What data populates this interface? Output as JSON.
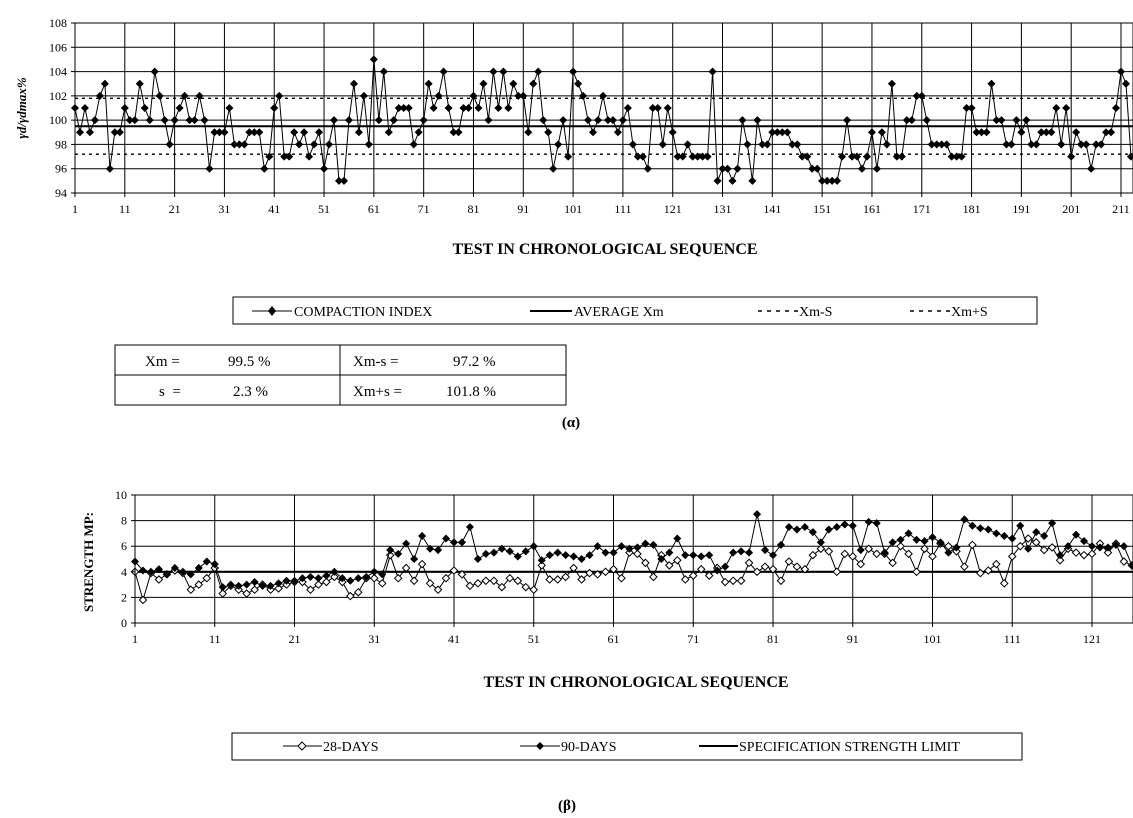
{
  "chart_data": [
    {
      "type": "line",
      "ylabel": "γd/γdmax%",
      "xlabel": "TEST IN CHRONOLOGICAL SEQUENCE",
      "ylim": [
        94,
        108
      ],
      "yticks": [
        94,
        96,
        98,
        100,
        102,
        104,
        106,
        108
      ],
      "xlim": [
        1,
        213
      ],
      "xticks": [
        1,
        11,
        21,
        31,
        41,
        51,
        61,
        71,
        81,
        91,
        101,
        111,
        121,
        131,
        141,
        151,
        161,
        171,
        181,
        191,
        201,
        211
      ],
      "grid": true,
      "legend": {
        "placement": "below",
        "entries": [
          "COMPACTION INDEX",
          "AVERAGE Xm",
          "Xm-S",
          "Xm+S"
        ]
      },
      "series": [
        {
          "name": "COMPACTION INDEX",
          "x_start": 1,
          "values": [
            101,
            99,
            101,
            99,
            100,
            102,
            103,
            96,
            99,
            99,
            101,
            100,
            100,
            103,
            101,
            100,
            104,
            102,
            100,
            98,
            100,
            101,
            102,
            100,
            100,
            102,
            100,
            96,
            99,
            99,
            99,
            101,
            98,
            98,
            98,
            99,
            99,
            99,
            96,
            97,
            101,
            102,
            97,
            97,
            99,
            98,
            99,
            97,
            98,
            99,
            96,
            98,
            100,
            95,
            95,
            100,
            103,
            99,
            102,
            98,
            105,
            100,
            104,
            99,
            100,
            101,
            101,
            101,
            98,
            99,
            100,
            103,
            101,
            102,
            104,
            101,
            99,
            99,
            101,
            101,
            102,
            101,
            103,
            100,
            104,
            101,
            104,
            101,
            103,
            102,
            102,
            99,
            103,
            104,
            100,
            99,
            96,
            98,
            100,
            97,
            104,
            103,
            102,
            100,
            99,
            100,
            102,
            100,
            100,
            99,
            100,
            101,
            98,
            97,
            97,
            96,
            101,
            101,
            98,
            101,
            99,
            97,
            97,
            98,
            97,
            97,
            97,
            97,
            104,
            95,
            96,
            96,
            95,
            96,
            100,
            98,
            95,
            100,
            98,
            98,
            99,
            99,
            99,
            99,
            98,
            98,
            97,
            97,
            96,
            96,
            95,
            95,
            95,
            95,
            97,
            100,
            97,
            97,
            96,
            97,
            99,
            96,
            99,
            98,
            103,
            97,
            97,
            100,
            100,
            102,
            102,
            100,
            98,
            98,
            98,
            98,
            97,
            97,
            97,
            101,
            101,
            99,
            99,
            99,
            103,
            100,
            100,
            98,
            98,
            100,
            99,
            100,
            98,
            98,
            99,
            99,
            99,
            101,
            98,
            101,
            97,
            99,
            98,
            98,
            96,
            98,
            98,
            99,
            99,
            101,
            104,
            103,
            97
          ]
        },
        {
          "name": "AVERAGE Xm",
          "value": 99.5
        },
        {
          "name": "Xm-S",
          "value": 97.2
        },
        {
          "name": "Xm+S",
          "value": 101.8
        }
      ],
      "caption": "(α)"
    },
    {
      "type": "line",
      "ylabel": "STRENGTH MP:",
      "xlabel": "TEST IN CHRONOLOGICAL SEQUENCE",
      "ylim": [
        0,
        10
      ],
      "yticks": [
        0,
        2,
        4,
        6,
        8,
        10
      ],
      "xlim": [
        1,
        126
      ],
      "xticks": [
        1,
        11,
        21,
        31,
        41,
        51,
        61,
        71,
        81,
        91,
        101,
        111,
        121
      ],
      "grid": true,
      "legend": {
        "placement": "below",
        "entries": [
          "28-DAYS",
          "90-DAYS",
          "SPECIFICATION STRENGTH LIMIT"
        ]
      },
      "series": [
        {
          "name": "28-DAYS",
          "x_start": 1,
          "values": [
            4.0,
            1.8,
            3.9,
            3.4,
            3.8,
            4.1,
            3.9,
            2.6,
            3.0,
            3.5,
            4.3,
            2.3,
            2.9,
            2.6,
            2.3,
            2.6,
            3.0,
            2.6,
            2.7,
            3.0,
            3.2,
            3.2,
            2.6,
            3.0,
            3.2,
            3.6,
            3.2,
            2.1,
            2.4,
            3.5,
            3.5,
            3.1,
            5.3,
            3.5,
            4.3,
            3.3,
            4.6,
            3.1,
            2.6,
            3.5,
            4.1,
            3.8,
            2.9,
            3.1,
            3.3,
            3.3,
            2.8,
            3.5,
            3.3,
            2.8,
            2.6,
            4.5,
            3.4,
            3.4,
            3.6,
            4.3,
            3.4,
            3.9,
            3.8,
            4.0,
            4.2,
            3.5,
            5.5,
            5.4,
            4.7,
            3.6,
            5.3,
            4.5,
            4.9,
            3.4,
            3.7,
            4.2,
            3.7,
            4.3,
            3.2,
            3.3,
            3.3,
            4.7,
            4.0,
            4.4,
            4.2,
            3.3,
            4.8,
            4.4,
            4.2,
            5.3,
            5.8,
            5.6,
            4.0,
            5.4,
            5.2,
            4.6,
            5.8,
            5.4,
            5.4,
            4.7,
            6.0,
            5.4,
            4.0,
            5.8,
            5.2,
            6.2,
            6.0,
            5.6,
            4.4,
            6.1,
            3.9,
            4.1,
            4.6,
            3.1,
            5.2,
            6.0,
            6.6,
            6.3,
            5.7,
            5.9,
            4.9,
            5.8,
            5.5,
            5.3,
            5.4,
            6.2,
            5.5,
            6.2,
            4.8,
            4.5,
            4.3,
            6.1,
            4.0,
            4.0,
            4.3,
            3.8
          ]
        },
        {
          "name": "90-DAYS",
          "x_start": 1,
          "values": [
            4.8,
            4.1,
            4.0,
            4.2,
            3.8,
            4.3,
            4.0,
            3.8,
            4.3,
            4.8,
            4.6,
            2.8,
            3.0,
            2.9,
            3.0,
            3.2,
            2.9,
            2.9,
            3.1,
            3.3,
            3.3,
            3.5,
            3.6,
            3.5,
            3.7,
            4.0,
            3.5,
            3.3,
            3.5,
            3.6,
            4.0,
            3.8,
            5.7,
            5.4,
            6.2,
            5.0,
            6.8,
            5.8,
            5.7,
            6.6,
            6.3,
            6.3,
            7.5,
            5.0,
            5.4,
            5.5,
            5.8,
            5.6,
            5.2,
            5.6,
            6.0,
            4.9,
            5.3,
            5.5,
            5.3,
            5.2,
            5.0,
            5.3,
            6.0,
            5.5,
            5.5,
            6.0,
            5.8,
            5.9,
            6.2,
            6.1,
            5.0,
            5.5,
            6.6,
            5.3,
            5.3,
            5.2,
            5.3,
            4.1,
            4.4,
            5.5,
            5.6,
            5.5,
            8.5,
            5.7,
            5.3,
            6.1,
            7.5,
            7.3,
            7.5,
            7.1,
            6.3,
            7.3,
            7.5,
            7.7,
            7.6,
            5.7,
            7.9,
            7.8,
            5.5,
            6.3,
            6.5,
            7.0,
            6.5,
            6.4,
            6.7,
            6.3,
            5.5,
            5.9,
            8.1,
            7.6,
            7.4,
            7.3,
            7.0,
            6.8,
            6.6,
            7.6,
            5.8,
            7.1,
            6.8,
            7.8,
            5.3,
            6.0,
            6.9,
            6.4,
            6.0,
            5.9,
            5.9,
            6.1,
            6.0,
            4.5,
            4.6,
            5.6
          ]
        },
        {
          "name": "SPECIFICATION STRENGTH LIMIT",
          "value": 4
        }
      ],
      "caption": "(β)"
    }
  ],
  "stats_table": {
    "rows": [
      [
        "Xm =",
        "99.5 %",
        "Xm-s =",
        "97.2 %"
      ],
      [
        "s  =",
        "2.3 %",
        "Xm+s =",
        "101.8 %"
      ]
    ]
  }
}
